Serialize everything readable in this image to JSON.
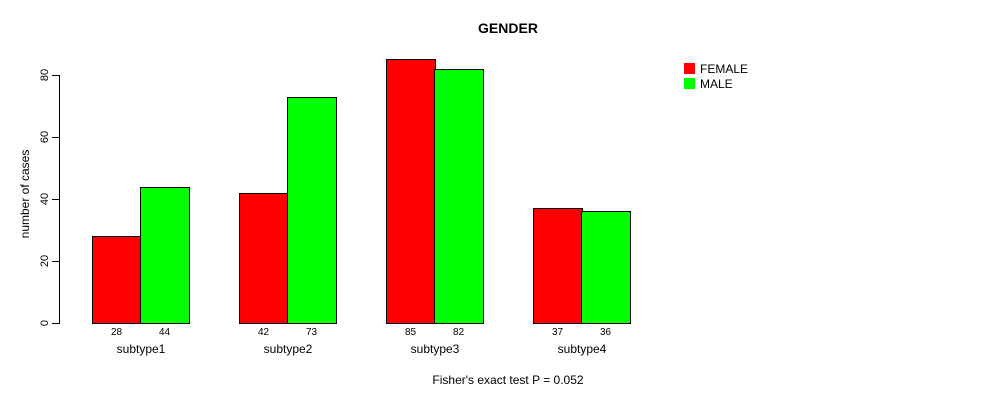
{
  "title": "GENDER",
  "footer_note": "Fisher's exact test P = 0.052",
  "colors": {
    "female": "#ff0000",
    "male": "#00ff00",
    "axis": "#000000",
    "background": "#ffffff"
  },
  "chart_data": {
    "type": "bar",
    "title": "GENDER",
    "xlabel": "",
    "ylabel": "number of cases",
    "categories": [
      "subtype1",
      "subtype2",
      "subtype3",
      "subtype4"
    ],
    "series": [
      {
        "name": "FEMALE",
        "color": "#ff0000",
        "values": [
          28,
          42,
          85,
          37
        ]
      },
      {
        "name": "MALE",
        "color": "#00ff00",
        "values": [
          44,
          73,
          82,
          36
        ]
      }
    ],
    "ylim": [
      0,
      80
    ],
    "yticks": [
      0,
      20,
      40,
      60,
      80
    ],
    "grid": false,
    "legend_position": "right",
    "show_value_labels": true,
    "annotation": "Fisher's exact test P = 0.052"
  }
}
